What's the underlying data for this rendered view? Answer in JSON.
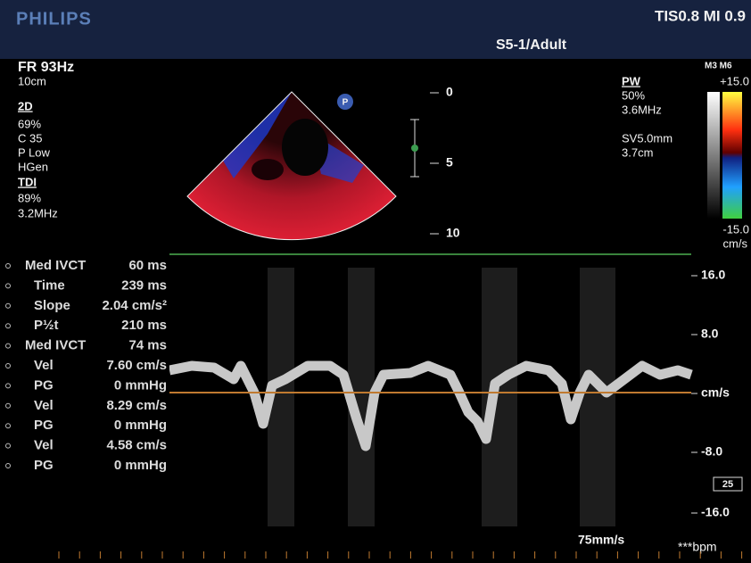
{
  "header": {
    "brand": "PHILIPS",
    "indices": "TIS0.8  MI 0.9",
    "probe": "S5-1/Adult"
  },
  "left_params": [
    "FR 93Hz",
    "10cm",
    "2D",
    "69%",
    "C 35",
    "P Low",
    "HGen",
    "TDI",
    "89%",
    "3.2MHz"
  ],
  "depth_scale": [
    "0",
    "5",
    "10"
  ],
  "pw_params": [
    "PW",
    "50%",
    "3.6MHz",
    "SV5.0mm",
    "3.7cm"
  ],
  "color_bar": {
    "mode": "M3 M6",
    "max": "+15.0",
    "min": "-15.0",
    "unit": "cm/s"
  },
  "measurements": [
    {
      "label": "Med IVCT",
      "value": "60 ms"
    },
    {
      "label": "Time",
      "value": "239 ms"
    },
    {
      "label": "Slope",
      "value": "2.04 cm/s²"
    },
    {
      "label": "P½t",
      "value": "210 ms"
    },
    {
      "label": "Med IVCT",
      "value": "74 ms"
    },
    {
      "label": "Vel",
      "value": "7.60 cm/s"
    },
    {
      "label": "PG",
      "value": "0 mmHg"
    },
    {
      "label": "Vel",
      "value": "8.29 cm/s"
    },
    {
      "label": "PG",
      "value": "0 mmHg"
    },
    {
      "label": "Vel",
      "value": "4.58 cm/s"
    },
    {
      "label": "PG",
      "value": "0 mmHg"
    }
  ],
  "velocity_scale": [
    "16.0",
    "8.0",
    "cm/s",
    "-8.0",
    "-16.0"
  ],
  "marker_box": "25",
  "sweep_speed": "75mm/s",
  "heart_rate": "***bpm"
}
